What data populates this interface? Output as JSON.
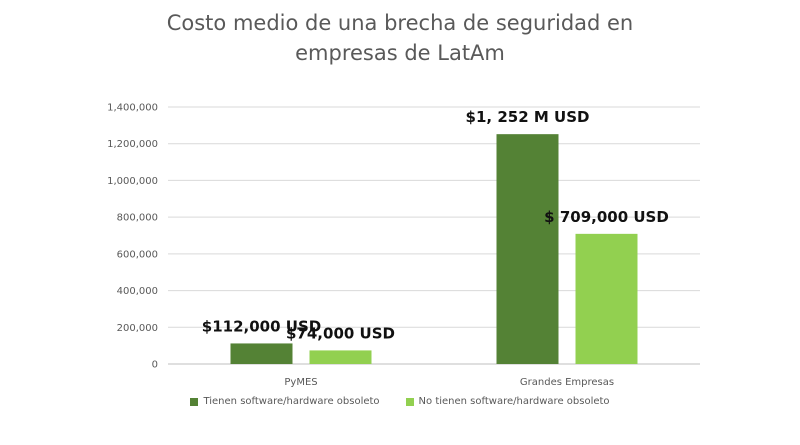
{
  "chart_data": {
    "type": "bar",
    "title": [
      "Costo medio de una brecha de seguridad en",
      "empresas de LatAm"
    ],
    "categories": [
      "PyMES",
      "Grandes Empresas"
    ],
    "series": [
      {
        "name": "Tienen software/hardware obsoleto",
        "color": "#548235",
        "values": [
          112000,
          1252000
        ],
        "labels": [
          "$112,000 USD",
          "$1, 252 M USD"
        ]
      },
      {
        "name": "No tienen software/hardware obsoleto",
        "color": "#92D050",
        "values": [
          74000,
          709000
        ],
        "labels": [
          "$74,000 USD",
          "$ 709,000 USD"
        ]
      }
    ],
    "ylim": [
      0,
      1400000
    ],
    "yticks": [
      "0",
      "200,000",
      "400,000",
      "600,000",
      "800,000",
      "1,000,000",
      "1,200,000",
      "1,400,000"
    ],
    "grid": true,
    "legend": "bottom"
  }
}
